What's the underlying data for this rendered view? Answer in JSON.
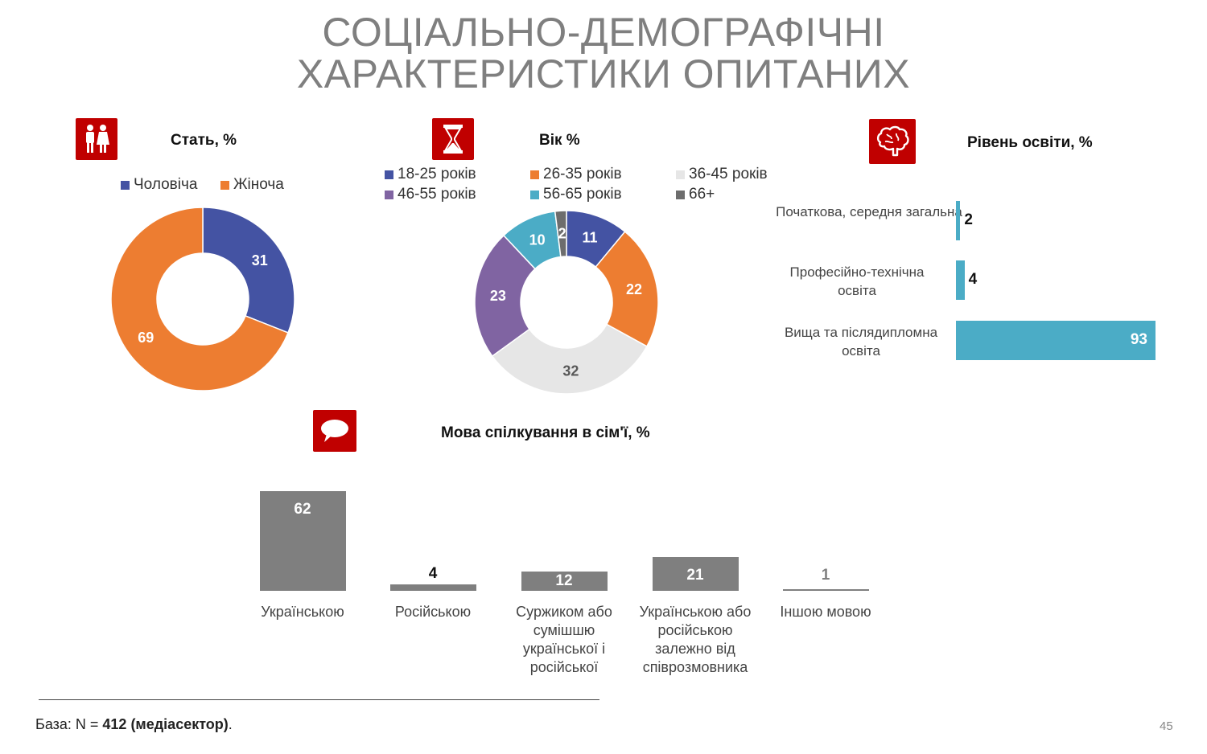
{
  "title": {
    "line1": "СОЦІАЛЬНО-ДЕМОГРАФІЧНІ",
    "line2": "ХАРАКТЕРИСТИКИ ОПИТАНИХ"
  },
  "footer": {
    "base_prefix": "База: N = ",
    "base_bold": "412 (медіасектор)",
    "base_suffix": ".",
    "page_number": "45"
  },
  "colors": {
    "accent_red": "#c00000",
    "male": "#4453a3",
    "female": "#ed7d31",
    "teal": "#4bacc6",
    "purple": "#8064a2",
    "light_gray": "#e6e6e6",
    "dark_gray": "#6d6d6d",
    "bar_gray": "#7f7f7f"
  },
  "chart_data": [
    {
      "id": "gender",
      "type": "pie",
      "title": "Стать, %",
      "icon": "people-icon",
      "categories": [
        "Чоловіча",
        "Жіноча"
      ],
      "values": [
        31,
        69
      ],
      "colors": [
        "#4453a3",
        "#ed7d31"
      ],
      "legend": "top"
    },
    {
      "id": "age",
      "type": "pie",
      "title": "Вік %",
      "icon": "hourglass-icon",
      "categories": [
        "18-25 років",
        "26-35 років",
        "36-45 років",
        "46-55 років",
        "56-65 років",
        "66+"
      ],
      "values": [
        11,
        22,
        32,
        23,
        10,
        2
      ],
      "colors": [
        "#4453a3",
        "#ed7d31",
        "#e6e6e6",
        "#8064a2",
        "#4bacc6",
        "#6d6d6d"
      ],
      "legend": "top"
    },
    {
      "id": "education",
      "type": "bar",
      "orientation": "horizontal",
      "title": "Рівень освіти, %",
      "icon": "brain-icon",
      "categories": [
        "Початкова, середня загальна",
        "Професійно-технічна освіта",
        "Вища та післядипломна освіта"
      ],
      "values": [
        2,
        4,
        93
      ],
      "color": "#4bacc6"
    },
    {
      "id": "language",
      "type": "bar",
      "title": "Мова спілкування в сім'ї, %",
      "icon": "speech-bubble-icon",
      "categories": [
        "Українською",
        "Російською",
        "Суржиком або сумішшю української і російської",
        "Українською або російською залежно від співрозмовника",
        "Іншою мовою"
      ],
      "values": [
        62,
        4,
        12,
        21,
        1
      ],
      "color": "#7f7f7f"
    }
  ]
}
